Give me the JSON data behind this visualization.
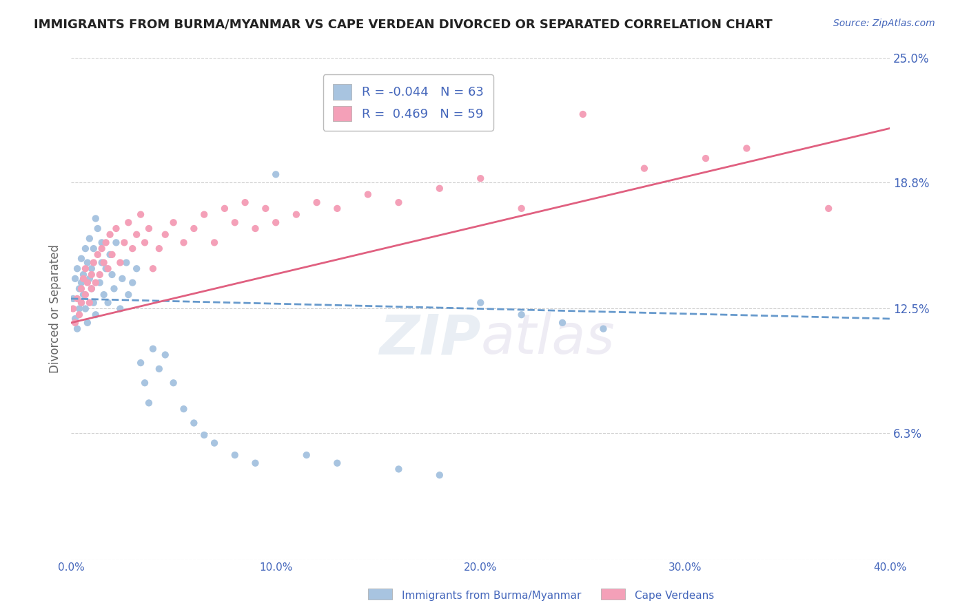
{
  "title": "IMMIGRANTS FROM BURMA/MYANMAR VS CAPE VERDEAN DIVORCED OR SEPARATED CORRELATION CHART",
  "source_text": "Source: ZipAtlas.com",
  "ylabel": "Divorced or Separated",
  "xlim": [
    0.0,
    0.4
  ],
  "ylim": [
    0.0,
    0.25
  ],
  "yticks": [
    0.0,
    0.063,
    0.125,
    0.188,
    0.25
  ],
  "ytick_labels": [
    "",
    "6.3%",
    "12.5%",
    "18.8%",
    "25.0%"
  ],
  "xticks": [
    0.0,
    0.1,
    0.2,
    0.3,
    0.4
  ],
  "xtick_labels": [
    "0.0%",
    "10.0%",
    "20.0%",
    "30.0%",
    "40.0%"
  ],
  "blue_R": "-0.044",
  "blue_N": "63",
  "pink_R": "0.469",
  "pink_N": "59",
  "blue_color": "#a8c4e0",
  "pink_color": "#f4a0b8",
  "blue_line_color": "#6699cc",
  "pink_line_color": "#e06080",
  "legend_label_blue": "Immigrants from Burma/Myanmar",
  "legend_label_pink": "Cape Verdeans",
  "text_color": "#4466bb",
  "title_color": "#222222",
  "grid_color": "#cccccc",
  "background_color": "#ffffff",
  "blue_scatter_x": [
    0.001,
    0.002,
    0.002,
    0.003,
    0.003,
    0.004,
    0.004,
    0.005,
    0.005,
    0.005,
    0.006,
    0.006,
    0.007,
    0.007,
    0.008,
    0.008,
    0.009,
    0.009,
    0.01,
    0.01,
    0.011,
    0.011,
    0.012,
    0.012,
    0.013,
    0.014,
    0.015,
    0.015,
    0.016,
    0.017,
    0.018,
    0.019,
    0.02,
    0.021,
    0.022,
    0.024,
    0.025,
    0.027,
    0.028,
    0.03,
    0.032,
    0.034,
    0.036,
    0.038,
    0.04,
    0.043,
    0.046,
    0.05,
    0.055,
    0.06,
    0.065,
    0.07,
    0.08,
    0.09,
    0.1,
    0.115,
    0.13,
    0.16,
    0.18,
    0.2,
    0.22,
    0.24,
    0.26
  ],
  "blue_scatter_y": [
    0.13,
    0.14,
    0.12,
    0.145,
    0.115,
    0.135,
    0.125,
    0.15,
    0.128,
    0.138,
    0.142,
    0.132,
    0.155,
    0.125,
    0.148,
    0.118,
    0.14,
    0.16,
    0.135,
    0.145,
    0.155,
    0.128,
    0.17,
    0.122,
    0.165,
    0.138,
    0.148,
    0.158,
    0.132,
    0.145,
    0.128,
    0.152,
    0.142,
    0.135,
    0.158,
    0.125,
    0.14,
    0.148,
    0.132,
    0.138,
    0.145,
    0.098,
    0.088,
    0.078,
    0.105,
    0.095,
    0.102,
    0.088,
    0.075,
    0.068,
    0.062,
    0.058,
    0.052,
    0.048,
    0.192,
    0.052,
    0.048,
    0.045,
    0.042,
    0.128,
    0.122,
    0.118,
    0.115
  ],
  "pink_scatter_x": [
    0.001,
    0.002,
    0.003,
    0.004,
    0.005,
    0.005,
    0.006,
    0.007,
    0.007,
    0.008,
    0.009,
    0.01,
    0.01,
    0.011,
    0.012,
    0.013,
    0.014,
    0.015,
    0.016,
    0.017,
    0.018,
    0.019,
    0.02,
    0.022,
    0.024,
    0.026,
    0.028,
    0.03,
    0.032,
    0.034,
    0.036,
    0.038,
    0.04,
    0.043,
    0.046,
    0.05,
    0.055,
    0.06,
    0.065,
    0.07,
    0.075,
    0.08,
    0.085,
    0.09,
    0.095,
    0.1,
    0.11,
    0.12,
    0.13,
    0.145,
    0.16,
    0.18,
    0.2,
    0.22,
    0.25,
    0.28,
    0.31,
    0.33,
    0.37
  ],
  "pink_scatter_y": [
    0.125,
    0.118,
    0.13,
    0.122,
    0.135,
    0.128,
    0.14,
    0.132,
    0.145,
    0.138,
    0.128,
    0.142,
    0.135,
    0.148,
    0.138,
    0.152,
    0.142,
    0.155,
    0.148,
    0.158,
    0.145,
    0.162,
    0.152,
    0.165,
    0.148,
    0.158,
    0.168,
    0.155,
    0.162,
    0.172,
    0.158,
    0.165,
    0.145,
    0.155,
    0.162,
    0.168,
    0.158,
    0.165,
    0.172,
    0.158,
    0.175,
    0.168,
    0.178,
    0.165,
    0.175,
    0.168,
    0.172,
    0.178,
    0.175,
    0.182,
    0.178,
    0.185,
    0.19,
    0.175,
    0.222,
    0.195,
    0.2,
    0.205,
    0.175
  ],
  "blue_trend_x": [
    0.0,
    0.4
  ],
  "blue_trend_y": [
    0.13,
    0.12
  ],
  "pink_trend_x": [
    0.0,
    0.4
  ],
  "pink_trend_y": [
    0.118,
    0.215
  ]
}
